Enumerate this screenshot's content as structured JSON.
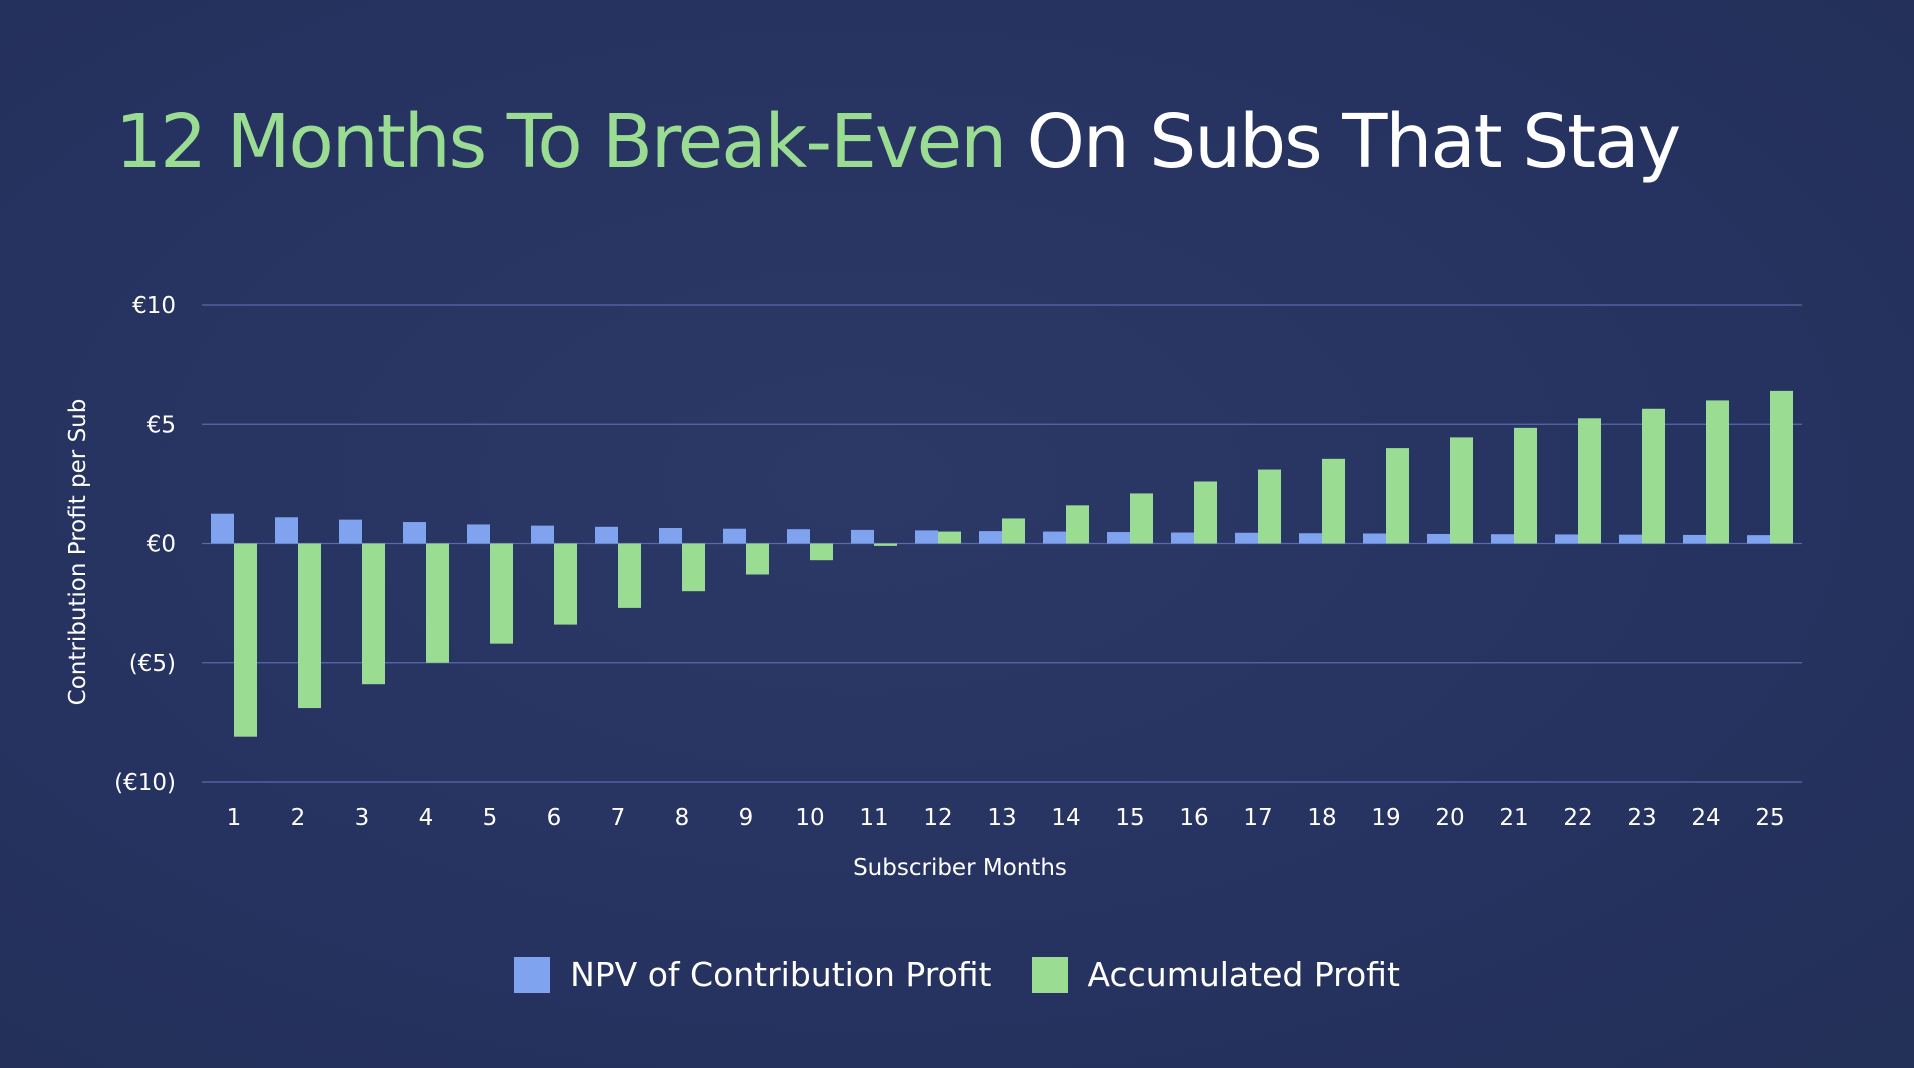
{
  "title": {
    "accent": "12 Months To Break-Even",
    "rest": "On Subs That Stay"
  },
  "colors": {
    "background": "#283462",
    "accent": "#9bdc93",
    "title_rest": "#ffffff",
    "gridline": "#5a6aa8"
  },
  "legend": [
    {
      "label": "NPV of Contribution Profit",
      "color": "#7fa3ef"
    },
    {
      "label": "Accumulated Profit",
      "color": "#9bdc93"
    }
  ],
  "chart_data": {
    "type": "bar",
    "xlabel": "Subscriber Months",
    "ylabel": "Contribution Profit per Sub",
    "ylim": [
      -10,
      10
    ],
    "yticks": [
      10,
      5,
      0,
      -5,
      -10
    ],
    "ytick_labels": [
      "€10",
      "€5",
      "€0",
      "(€5)",
      "(€10)"
    ],
    "grid": true,
    "legend_position": "bottom",
    "categories": [
      "1",
      "2",
      "3",
      "4",
      "5",
      "6",
      "7",
      "8",
      "9",
      "10",
      "11",
      "12",
      "13",
      "14",
      "15",
      "16",
      "17",
      "18",
      "19",
      "20",
      "21",
      "22",
      "23",
      "24",
      "25"
    ],
    "series": [
      {
        "name": "NPV of Contribution Profit",
        "color": "#7fa3ef",
        "values": [
          1.25,
          1.1,
          1.0,
          0.9,
          0.8,
          0.75,
          0.7,
          0.65,
          0.62,
          0.6,
          0.57,
          0.55,
          0.52,
          0.5,
          0.48,
          0.46,
          0.45,
          0.43,
          0.42,
          0.4,
          0.39,
          0.38,
          0.37,
          0.36,
          0.35
        ]
      },
      {
        "name": "Accumulated Profit",
        "color": "#9bdc93",
        "values": [
          -8.1,
          -6.9,
          -5.9,
          -5.0,
          -4.2,
          -3.4,
          -2.7,
          -2.0,
          -1.3,
          -0.7,
          -0.1,
          0.5,
          1.05,
          1.6,
          2.1,
          2.6,
          3.1,
          3.55,
          4.0,
          4.45,
          4.85,
          5.25,
          5.65,
          6.0,
          6.4
        ]
      }
    ]
  }
}
